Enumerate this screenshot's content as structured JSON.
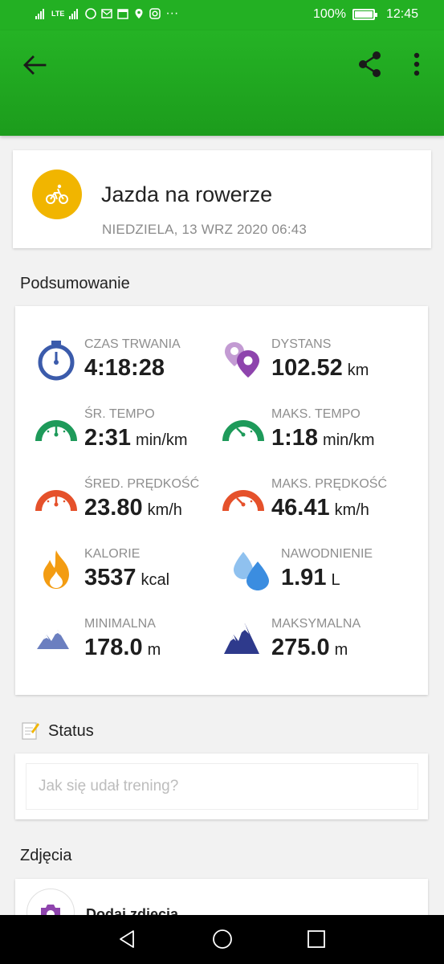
{
  "statusbar": {
    "network": "LTE",
    "battery": "100%",
    "battery_level": 1.0,
    "time": "12:45"
  },
  "header": {
    "title": "Jazda na rowerze",
    "date": "NIEDZIELA, 13 WRZ 2020 06:43",
    "icon": "bicycle-icon",
    "accent": "#f1b500"
  },
  "summary": {
    "title": "Podsumowanie",
    "stats": [
      {
        "label": "CZAS TRWANIA",
        "value": "4:18:28",
        "unit": "",
        "icon": "stopwatch-icon"
      },
      {
        "label": "DYSTANS",
        "value": "102.52",
        "unit": "km",
        "icon": "map-pins-icon"
      },
      {
        "label": "ŚR. TEMPO",
        "value": "2:31",
        "unit": "min/km",
        "icon": "pace-gauge-icon"
      },
      {
        "label": "MAKS. TEMPO",
        "value": "1:18",
        "unit": "min/km",
        "icon": "max-pace-gauge-icon"
      },
      {
        "label": "ŚRED. PRĘDKOŚĆ",
        "value": "23.80",
        "unit": "km/h",
        "icon": "speed-gauge-icon"
      },
      {
        "label": "MAKS. PRĘDKOŚĆ",
        "value": "46.41",
        "unit": "km/h",
        "icon": "max-speed-gauge-icon"
      },
      {
        "label": "KALORIE",
        "value": "3537",
        "unit": "kcal",
        "icon": "flame-icon"
      },
      {
        "label": "NAWODNIENIE",
        "value": "1.91",
        "unit": "L",
        "icon": "water-drops-icon"
      },
      {
        "label": "MINIMALNA",
        "value": "178.0",
        "unit": "m",
        "icon": "min-altitude-icon"
      },
      {
        "label": "MAKSYMALNA",
        "value": "275.0",
        "unit": "m",
        "icon": "max-altitude-icon"
      }
    ]
  },
  "status": {
    "title": "Status",
    "placeholder": "Jak się udał trening?"
  },
  "photos": {
    "title": "Zdjęcia",
    "add_label": "Dodaj zdjęcia"
  },
  "colors": {
    "appbar": "#23b023",
    "green_gauge": "#1e9a5a",
    "red_gauge": "#e5512b",
    "purple": "#8e44ad",
    "blue_stopwatch": "#3b5bab",
    "water": "#3b8de0"
  }
}
